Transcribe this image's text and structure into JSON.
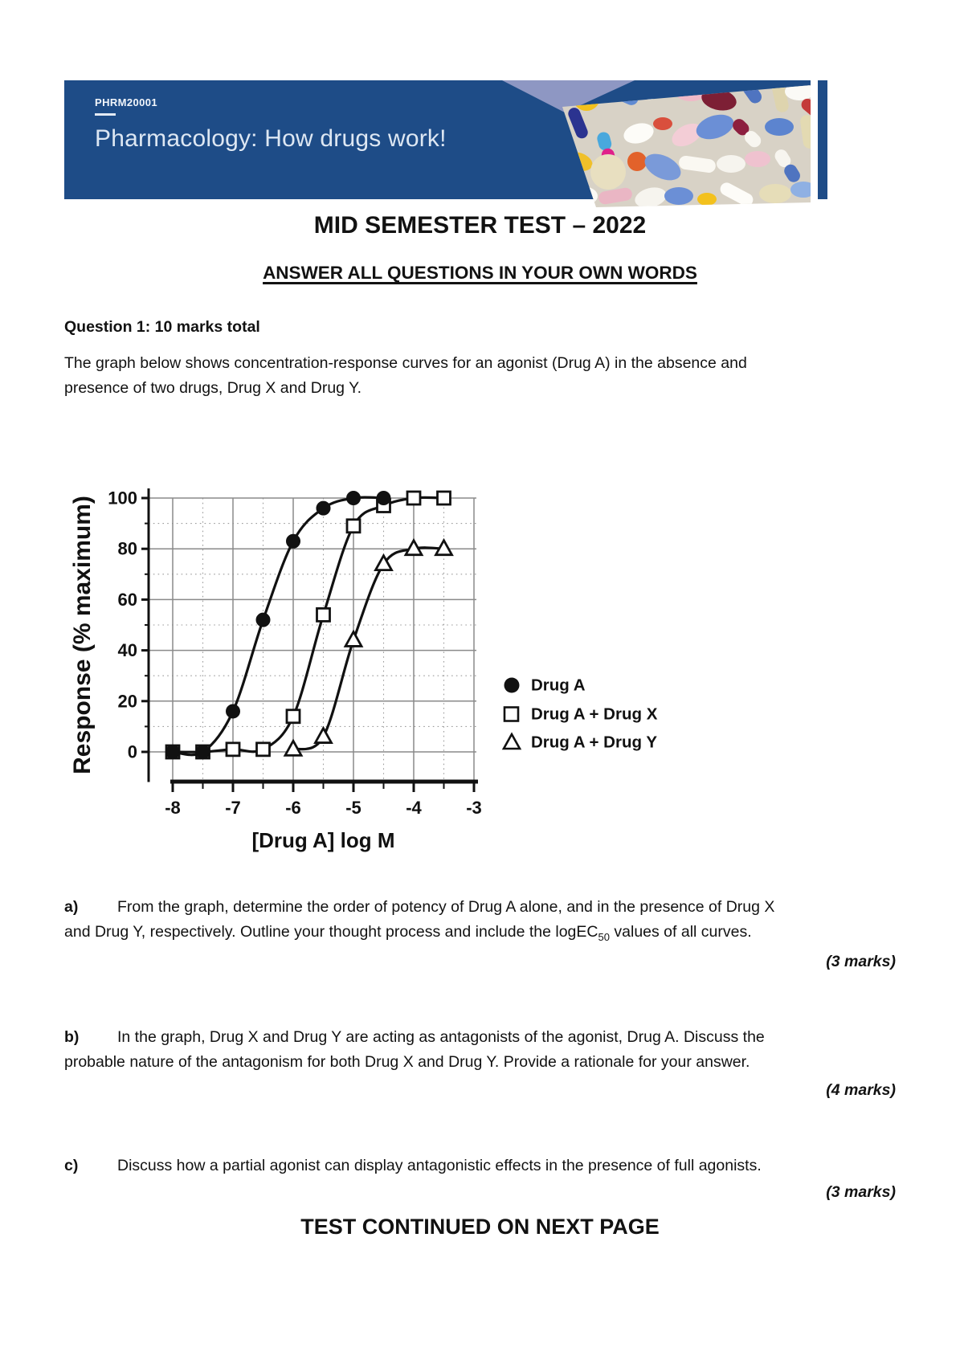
{
  "banner": {
    "course_code": "PHRM20001",
    "title": "Pharmacology: How drugs work!",
    "bg_color": "#1e4c87",
    "accent_wedge_color": "#8e97c3",
    "photo_palette": [
      "#6b8fd6",
      "#4f74c0",
      "#f6f3ec",
      "#e6ddb8",
      "#8d1f3f",
      "#c43a3a",
      "#f0b9c8",
      "#f3c11d",
      "#e0218a",
      "#49a8dd",
      "#e2622b",
      "#2b3390"
    ]
  },
  "heading": {
    "title": "MID SEMESTER TEST – 2022",
    "subtitle": "ANSWER ALL QUESTIONS IN YOUR OWN WORDS"
  },
  "question1": {
    "heading": "Question 1: 10 marks total",
    "intro_lines": [
      "The graph below shows concentration-response curves for an agonist (Drug A) in the absence and",
      "presence of two drugs, Drug X and Drug Y."
    ],
    "parts": {
      "a": {
        "label": "a)",
        "line1": "From the graph, determine the order of potency of Drug A alone, and in the presence of Drug X",
        "line2_pre": "and Drug Y, respectively. Outline your thought process and include the logEC",
        "line2_sub": "50",
        "line2_post": " values of all curves.",
        "marks": "(3 marks)"
      },
      "b": {
        "label": "b)",
        "line1": "In the graph, Drug X and Drug Y are acting as antagonists of the agonist, Drug A. Discuss the",
        "line2": "probable nature of the antagonism for both Drug X and Drug Y. Provide a rationale for your answer.",
        "marks": "(4 marks)"
      },
      "c": {
        "label": "c)",
        "line1": "Discuss how a partial agonist can display antagonistic effects in the presence of full agonists.",
        "marks": "(3 marks)"
      }
    }
  },
  "footer": {
    "text": "TEST CONTINUED ON NEXT PAGE"
  },
  "chart_data": {
    "type": "line",
    "title": "",
    "xlabel": "[Drug A] log M",
    "ylabel": "Response (% maximum)",
    "xlim": [
      -8.4,
      -2.95
    ],
    "ylim": [
      0,
      100
    ],
    "x_ticks": [
      -8,
      -7,
      -6,
      -5,
      -4,
      -3
    ],
    "y_ticks": [
      0,
      20,
      40,
      60,
      80,
      100
    ],
    "x_minor_ticks": [
      -7.5,
      -6.5,
      -5.5,
      -4.5,
      -3.5
    ],
    "y_minor_ticks": [
      10,
      30,
      50,
      70,
      90
    ],
    "grid": "major solid, minor dotted",
    "legend_position": "right of plot, middle",
    "series": [
      {
        "name": "Drug A",
        "marker": "filled-circle",
        "x": [
          -8,
          -7.5,
          -7,
          -6.5,
          -6,
          -5.5,
          -5,
          -4.5
        ],
        "y": [
          0,
          0,
          16,
          52,
          83,
          96,
          100,
          100
        ]
      },
      {
        "name": "Drug A + Drug X",
        "marker": "open-square",
        "x": [
          -8,
          -7.5,
          -7,
          -6.5,
          -6,
          -5.5,
          -5,
          -4.5,
          -4,
          -3.5
        ],
        "y": [
          0,
          0,
          1,
          1,
          14,
          54,
          89,
          97,
          100,
          100
        ]
      },
      {
        "name": "Drug A + Drug Y",
        "marker": "open-triangle",
        "x": [
          -6,
          -5.5,
          -5,
          -4.5,
          -4,
          -3.5
        ],
        "y": [
          1,
          6,
          44,
          74,
          80,
          80
        ]
      }
    ]
  }
}
